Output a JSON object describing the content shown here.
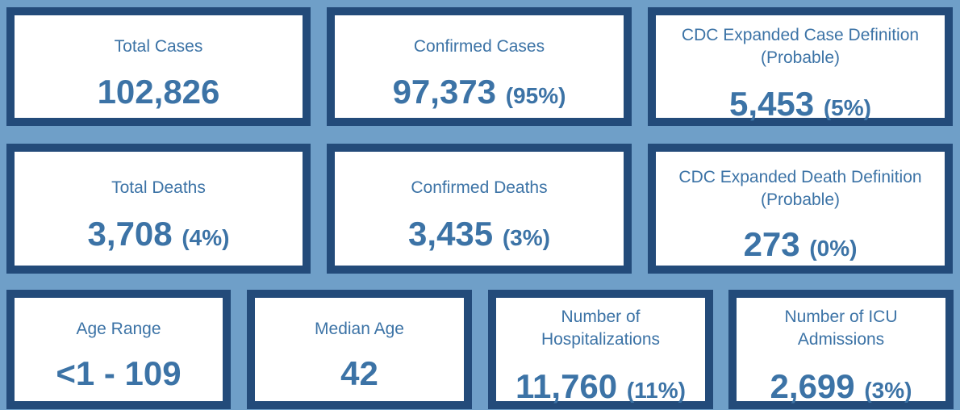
{
  "cards": {
    "total_cases": {
      "label": "Total Cases",
      "value": "102,826",
      "pct": ""
    },
    "confirmed_cases": {
      "label": "Confirmed Cases",
      "value": "97,373",
      "pct": "(95%)"
    },
    "probable_cases": {
      "label_line1": "CDC Expanded Case Definition",
      "label_line2": "(Probable)",
      "value": "5,453",
      "pct": "(5%)"
    },
    "total_deaths": {
      "label": "Total Deaths",
      "value": "3,708",
      "pct": "(4%)"
    },
    "confirmed_deaths": {
      "label": "Confirmed Deaths",
      "value": "3,435",
      "pct": "(3%)"
    },
    "probable_deaths": {
      "label_line1": "CDC Expanded Death Definition",
      "label_line2": "(Probable)",
      "value": "273",
      "pct": "(0%)"
    },
    "age_range": {
      "label": "Age Range",
      "value": "<1 - 109"
    },
    "median_age": {
      "label": "Median Age",
      "value": "42"
    },
    "hospitalizations": {
      "label_line1": "Number of",
      "label_line2": "Hospitalizations",
      "value": "11,760",
      "pct": "(11%)"
    },
    "icu_admissions": {
      "label_line1": "Number of ICU",
      "label_line2": "Admissions",
      "value": "2,699",
      "pct": "(3%)"
    }
  },
  "colors": {
    "background": "#6f9fc8",
    "border": "#234b7a",
    "text": "#3c73a6",
    "card": "#ffffff"
  }
}
